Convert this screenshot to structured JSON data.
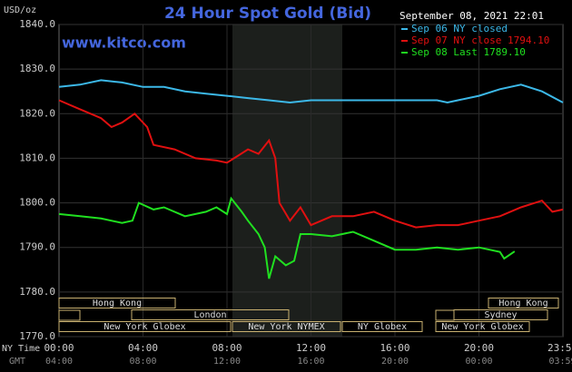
{
  "chart_data": {
    "type": "line",
    "title": "24 Hour Spot Gold (Bid)",
    "site": "www.kitco.com",
    "y_label": "USD/oz",
    "timestamp": "September 08, 2021 22:01",
    "x_label": "NY Time",
    "x2_label": "GMT",
    "xlim": [
      0,
      24
    ],
    "ylim": [
      1770,
      1840
    ],
    "yticks": [
      {
        "value": 1840,
        "label": "1840.0"
      },
      {
        "value": 1830,
        "label": "1830.0"
      },
      {
        "value": 1820,
        "label": "1820.0"
      },
      {
        "value": 1810,
        "label": "1810.0"
      },
      {
        "value": 1800,
        "label": "1800.0"
      },
      {
        "value": 1790,
        "label": "1790.0"
      },
      {
        "value": 1780,
        "label": "1780.0"
      },
      {
        "value": 1770,
        "label": "1770.0"
      }
    ],
    "xticks": [
      {
        "value": 0,
        "label": "00:00"
      },
      {
        "value": 4,
        "label": "04:00"
      },
      {
        "value": 8,
        "label": "08:00"
      },
      {
        "value": 12,
        "label": "12:00"
      },
      {
        "value": 16,
        "label": "16:00"
      },
      {
        "value": 20,
        "label": "20:00"
      },
      {
        "value": 23.98,
        "label": "23:59"
      }
    ],
    "x2ticks": [
      "04:00",
      "08:00",
      "12:00",
      "16:00",
      "20:00",
      "00:00",
      "03:59"
    ],
    "grid": true,
    "sessions": [
      "Hong Kong",
      "Hong Kong",
      "London",
      "Sydney",
      "New York Globex",
      "New York NYMEX",
      "NY Globex",
      "New York Globex"
    ],
    "series": [
      {
        "name": "Sep 06 NY closed",
        "color": "#3cb8e8",
        "x": [
          0,
          1,
          2,
          3,
          4,
          5,
          6,
          7,
          8,
          9,
          10,
          11,
          12,
          13,
          14,
          15,
          16,
          17,
          18,
          18.5,
          19,
          20,
          21,
          22,
          23,
          24
        ],
        "values": [
          1826,
          1826.5,
          1827.5,
          1827,
          1826,
          1826,
          1825,
          1824.5,
          1824,
          1823.5,
          1823,
          1822.5,
          1823,
          1823,
          1823,
          1823,
          1823,
          1823,
          1823,
          1822.5,
          1823,
          1824,
          1825.5,
          1826.5,
          1825,
          1822.5
        ]
      },
      {
        "name": "Sep 07 NY close 1794.10",
        "color": "#e01010",
        "x": [
          0,
          1,
          2,
          2.5,
          3,
          3.6,
          4.2,
          4.5,
          5.5,
          6.5,
          7.5,
          8,
          8.5,
          9,
          9.5,
          10,
          10.3,
          10.5,
          11,
          11.5,
          12,
          13,
          14,
          15,
          16,
          17,
          18,
          19,
          20,
          21,
          22,
          23,
          23.5,
          24
        ],
        "values": [
          1823,
          1821,
          1819,
          1817,
          1818,
          1820,
          1817,
          1813,
          1812,
          1810,
          1809.5,
          1809,
          1810.5,
          1812,
          1811,
          1814,
          1810,
          1800,
          1796,
          1799,
          1795,
          1797,
          1797,
          1798,
          1796,
          1794.5,
          1795,
          1795,
          1796,
          1797,
          1799,
          1800.5,
          1798,
          1798.5
        ]
      },
      {
        "name": "Sep 08 Last 1789.10",
        "color": "#20e020",
        "x": [
          0,
          1,
          2,
          3,
          3.5,
          3.8,
          4.5,
          5,
          6,
          7,
          7.5,
          8,
          8.2,
          8.7,
          9,
          9.5,
          9.8,
          10,
          10.3,
          10.8,
          11.2,
          11.5,
          12,
          13,
          14,
          15,
          16,
          17,
          18,
          19,
          20,
          21,
          21.2,
          21.7
        ],
        "values": [
          1797.5,
          1797,
          1796.5,
          1795.5,
          1796,
          1800,
          1798.5,
          1799,
          1797,
          1798,
          1799,
          1797.5,
          1801,
          1798,
          1796,
          1793,
          1790,
          1783,
          1788,
          1786,
          1787,
          1793,
          1793,
          1792.5,
          1793.5,
          1791.5,
          1789.5,
          1789.5,
          1790,
          1789.5,
          1790,
          1789,
          1787.5,
          1789.1
        ]
      }
    ]
  }
}
